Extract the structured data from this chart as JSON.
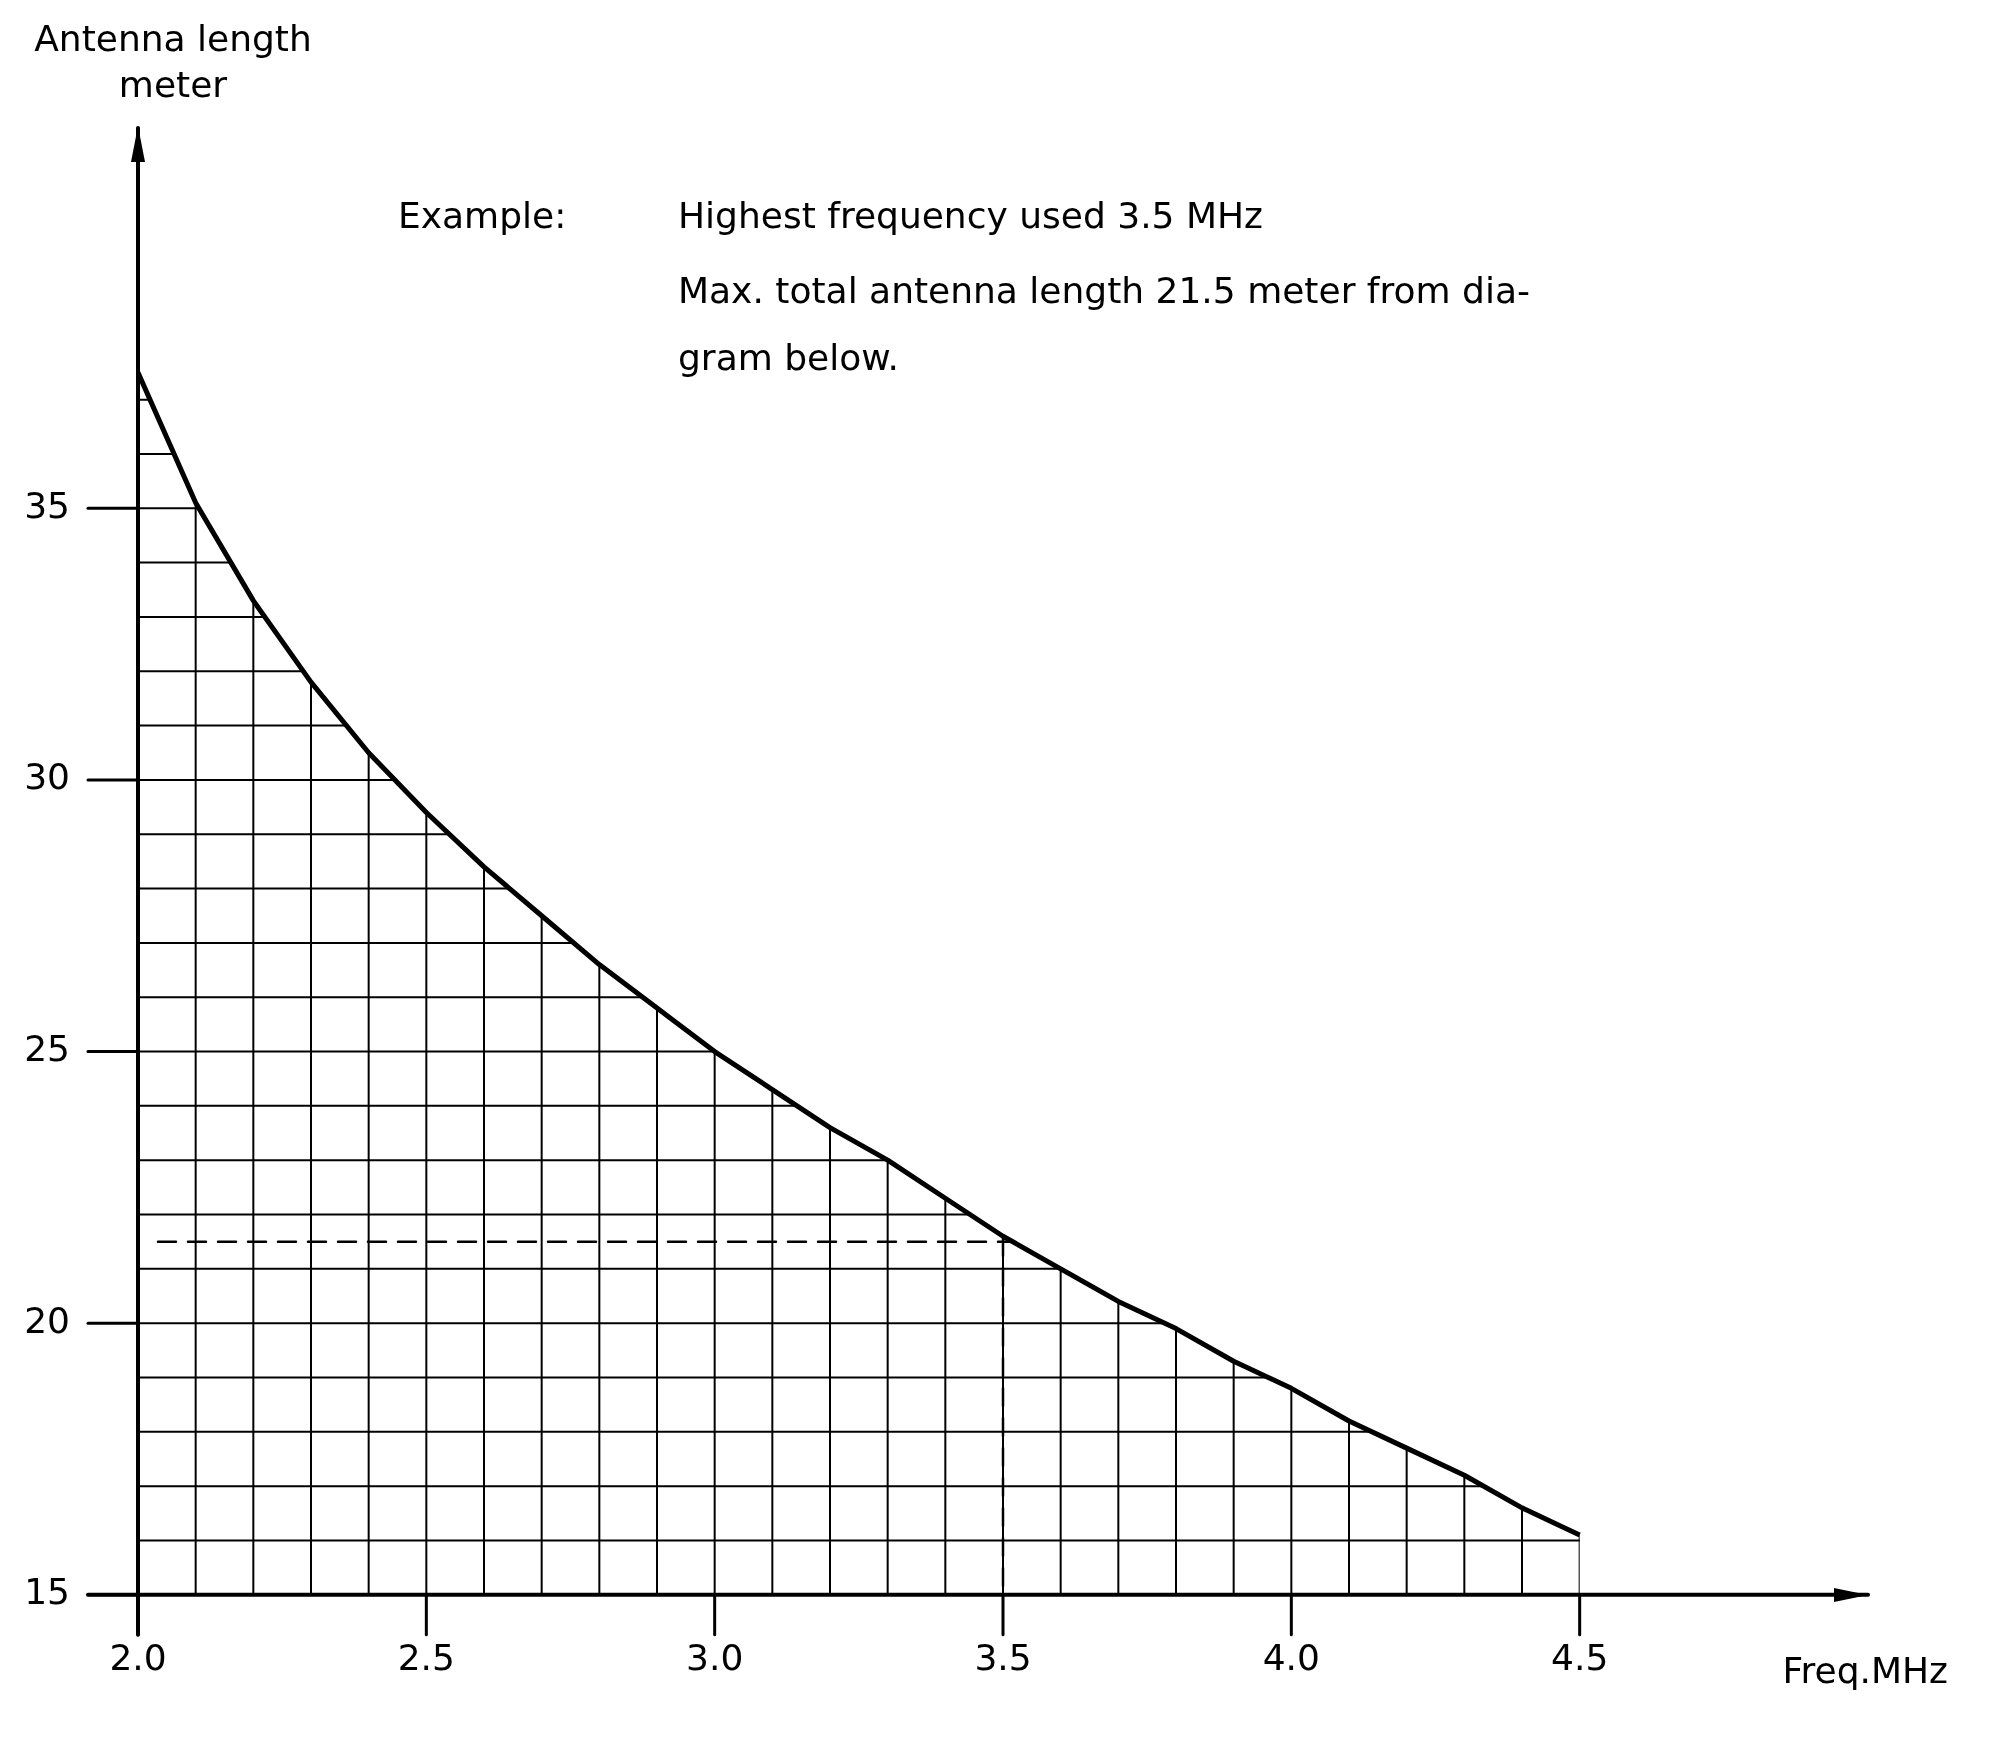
{
  "chart_data": {
    "type": "line",
    "xlabel": "Freq.MHz",
    "ylabel": "Antenna length meter",
    "annotations": [
      "Example:",
      "Highest frequency used 3.5 MHz",
      "Max. total antenna length 21.5 meter from dia-",
      "gram below."
    ],
    "x": [
      2.0,
      2.1,
      2.2,
      2.3,
      2.4,
      2.5,
      2.6,
      2.7,
      2.8,
      2.9,
      3.0,
      3.1,
      3.2,
      3.3,
      3.4,
      3.5,
      3.6,
      3.7,
      3.8,
      3.9,
      4.0,
      4.1,
      4.2,
      4.3,
      4.4,
      4.5
    ],
    "series": [
      {
        "color": "#000000",
        "values": [
          37.5,
          35.1,
          33.3,
          31.8,
          30.5,
          29.4,
          28.4,
          27.5,
          26.6,
          25.8,
          25.0,
          24.3,
          23.6,
          23.0,
          22.3,
          21.6,
          21.0,
          20.4,
          19.9,
          19.3,
          18.8,
          18.2,
          17.7,
          17.2,
          16.6,
          16.1
        ]
      }
    ],
    "xlim": [
      2.0,
      5.0
    ],
    "ylim": [
      15,
      42
    ],
    "xticks": [
      {
        "value": 2.0,
        "label": "2.0"
      },
      {
        "value": 2.1,
        "label": null
      },
      {
        "value": 2.2,
        "label": null
      },
      {
        "value": 2.3,
        "label": null
      },
      {
        "value": 2.4,
        "label": null
      },
      {
        "value": 2.5,
        "label": "2.5"
      },
      {
        "value": 2.6,
        "label": null
      },
      {
        "value": 2.7,
        "label": null
      },
      {
        "value": 2.8,
        "label": null
      },
      {
        "value": 2.9,
        "label": null
      },
      {
        "value": 3.0,
        "label": "3.0"
      },
      {
        "value": 3.1,
        "label": null
      },
      {
        "value": 3.2,
        "label": null
      },
      {
        "value": 3.3,
        "label": null
      },
      {
        "value": 3.4,
        "label": null
      },
      {
        "value": 3.5,
        "label": "3.5"
      },
      {
        "value": 3.6,
        "label": null
      },
      {
        "value": 3.7,
        "label": null
      },
      {
        "value": 3.8,
        "label": null
      },
      {
        "value": 3.9,
        "label": null
      },
      {
        "value": 4.0,
        "label": "4.0"
      },
      {
        "value": 4.1,
        "label": null
      },
      {
        "value": 4.2,
        "label": null
      },
      {
        "value": 4.3,
        "label": null
      },
      {
        "value": 4.4,
        "label": null
      },
      {
        "value": 4.5,
        "label": "4.5"
      }
    ],
    "yticks": [
      15,
      {
        "value": 16,
        "label": null
      },
      {
        "value": 17,
        "label": null
      },
      {
        "value": 18,
        "label": null
      },
      {
        "value": 19,
        "label": null
      },
      20,
      {
        "value": 21,
        "label": null
      },
      {
        "value": 22,
        "label": null
      },
      {
        "value": 23,
        "label": null
      },
      {
        "value": 24,
        "label": null
      },
      25,
      {
        "value": 26,
        "label": null
      },
      {
        "value": 27,
        "label": null
      },
      {
        "value": 28,
        "label": null
      },
      {
        "value": 29,
        "label": null
      },
      30,
      {
        "value": 31,
        "label": null
      },
      {
        "value": 32,
        "label": null
      },
      {
        "value": 33,
        "label": null
      },
      {
        "value": 34,
        "label": null
      },
      35,
      {
        "value": 36,
        "label": null
      },
      {
        "value": 37,
        "label": null
      }
    ],
    "grid": true,
    "marker": "none",
    "line_style": "solid",
    "ref_lines": [
      {
        "axis": "y",
        "value": 21.5,
        "line_style": "dashed"
      },
      {
        "axis": "x",
        "value": 3.5,
        "line_style": "dashed"
      }
    ]
  }
}
